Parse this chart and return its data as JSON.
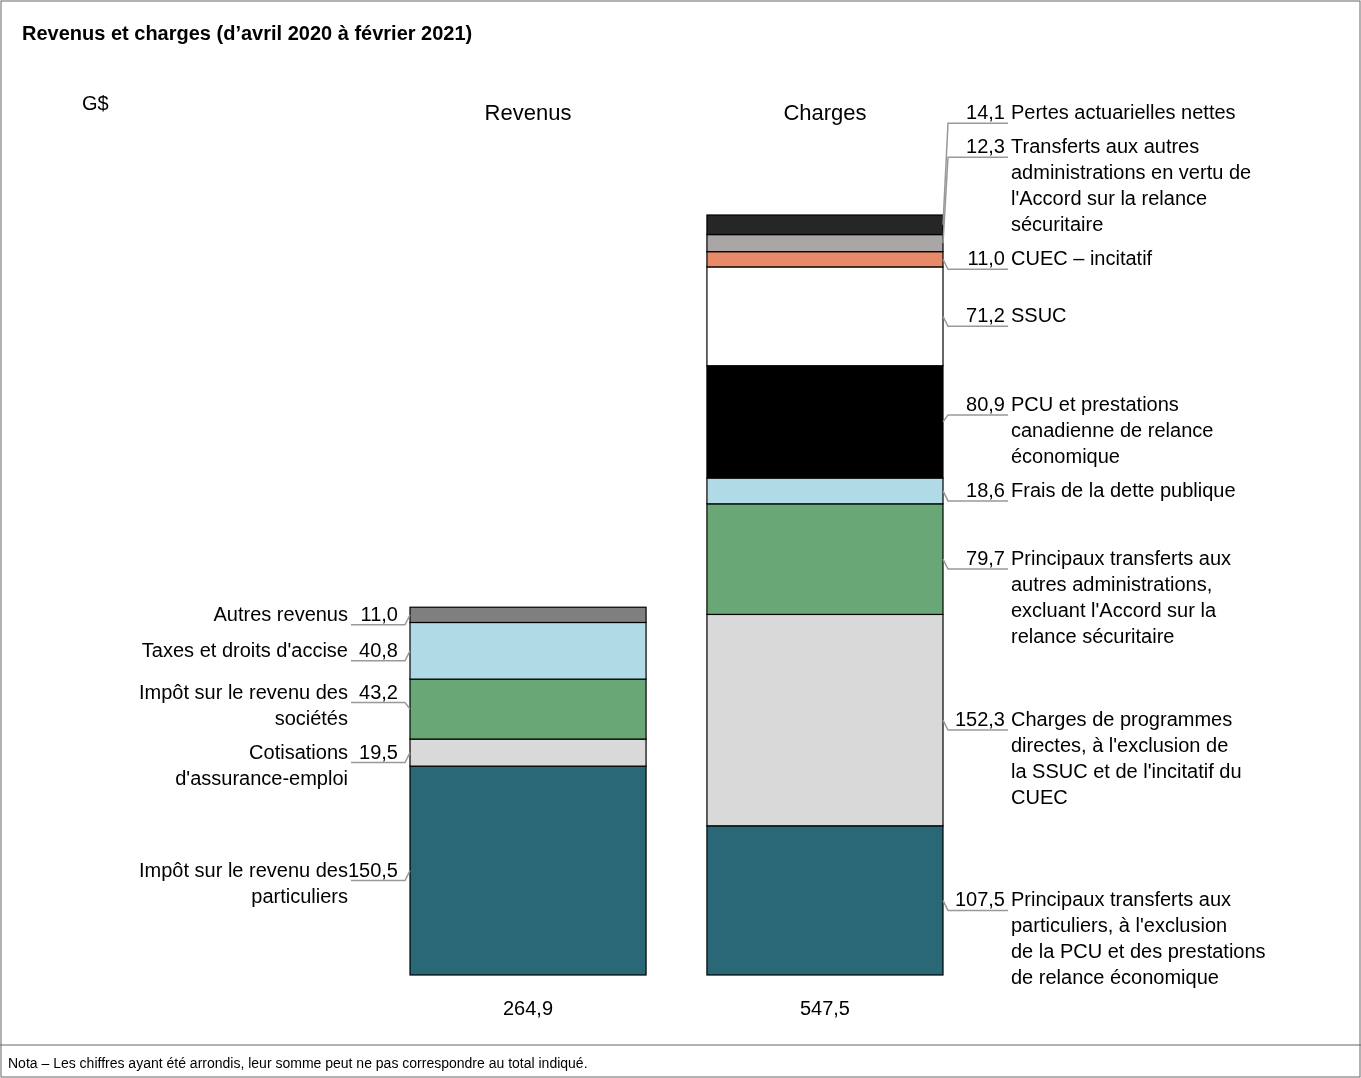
{
  "chart_data": {
    "type": "bar",
    "title": "Revenus et charges (d’avril 2020 à février 2021)",
    "categories": [
      "Revenus",
      "Charges"
    ],
    "stacked": true,
    "legend": false,
    "tick_labels": "x",
    "totals": [
      "264,9",
      "547,5"
    ],
    "annotations": [
      "G$",
      "Nota – Les chiffres ayant été arrondis, leur somme peut ne pas correspondre au total indiqué."
    ],
    "series": [
      {
        "name": "Impôt sur le revenu des particuliers",
        "color": "#2a6877",
        "values": [
          150.5,
          null
        ],
        "value_labels": [
          "150,5",
          null
        ]
      },
      {
        "name": "Cotisations d'assurance-emploi",
        "color": "#d9d9d9",
        "values": [
          19.5,
          null
        ],
        "value_labels": [
          "19,5",
          null
        ]
      },
      {
        "name": "Impôt sur le revenu des sociétés",
        "color": "#6aa776",
        "values": [
          43.2,
          null
        ],
        "value_labels": [
          "43,2",
          null
        ]
      },
      {
        "name": "Taxes et droits d'accise",
        "color": "#b0dbe6",
        "values": [
          40.8,
          null
        ],
        "value_labels": [
          "40,8",
          null
        ]
      },
      {
        "name": "Autres revenus",
        "color": "#7f7f7f",
        "values": [
          11.0,
          null
        ],
        "value_labels": [
          "11,0",
          null
        ]
      },
      {
        "name": "Principaux transferts aux particuliers, à l'exclusion de la PCU et des prestations de relance économique",
        "color": "#2a6877",
        "values": [
          null,
          107.5
        ],
        "value_labels": [
          null,
          "107,5"
        ]
      },
      {
        "name": "Charges de programmes directes, à l'exclusion de la SSUC et de l'incitatif du CUEC",
        "color": "#d9d9d9",
        "values": [
          null,
          152.3
        ],
        "value_labels": [
          null,
          "152,3"
        ]
      },
      {
        "name": "Principaux transferts aux autres administrations, excluant l'Accord sur la relance sécuritaire",
        "color": "#6aa776",
        "values": [
          null,
          79.7
        ],
        "value_labels": [
          null,
          "79,7"
        ]
      },
      {
        "name": "Frais de la dette publique",
        "color": "#b0dbe6",
        "values": [
          null,
          18.6
        ],
        "value_labels": [
          null,
          "18,6"
        ]
      },
      {
        "name": "PCU et prestations canadienne de relance économique",
        "color": "#000000",
        "values": [
          null,
          80.9
        ],
        "value_labels": [
          null,
          "80,9"
        ]
      },
      {
        "name": "SSUC",
        "color": "#ffffff",
        "values": [
          null,
          71.2
        ],
        "value_labels": [
          null,
          "71,2"
        ]
      },
      {
        "name": "CUEC – incitatif",
        "color": "#e8896a",
        "values": [
          null,
          11.0
        ],
        "value_labels": [
          null,
          "11,0"
        ]
      },
      {
        "name": "Transferts aux autres administrations en vertu de l'Accord sur la relance sécuritaire",
        "color": "#aaa6a6",
        "values": [
          null,
          12.3
        ],
        "value_labels": [
          null,
          "12,3"
        ]
      },
      {
        "name": "Pertes actuarielles nettes",
        "color": "#262626",
        "values": [
          null,
          14.1
        ],
        "value_labels": [
          null,
          "14,1"
        ]
      }
    ]
  }
}
